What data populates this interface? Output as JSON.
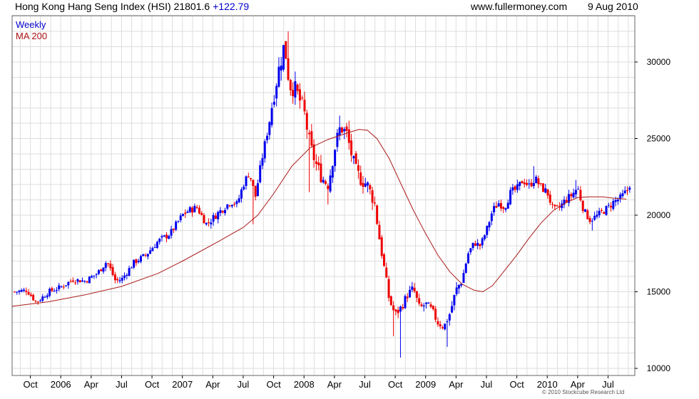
{
  "header": {
    "title": "Hong Kong Hang Seng Index (HSI) 21801.6",
    "change": "+122.79",
    "site": "www.fullermoney.com",
    "date": "9 Aug 2010"
  },
  "footer": {
    "copyright": "© 2010 Stockcube Research Ltd"
  },
  "colors": {
    "up": "#0000ee",
    "down": "#ee0000",
    "ma": "#aa1a1a",
    "grid": "#dddddd"
  },
  "chart_data": {
    "type": "candlestick",
    "ylim": [
      10000,
      33000
    ],
    "y_ticks": [
      "10000",
      "15000",
      "20000",
      "25000",
      "30000"
    ],
    "legend": [
      "Weekly",
      "MA 200"
    ],
    "legend_position": "top-left",
    "grid": true,
    "x_ticks": [
      {
        "label": "Oct",
        "t": 2005.75
      },
      {
        "label": "2006",
        "t": 2006.0
      },
      {
        "label": "Apr",
        "t": 2006.25
      },
      {
        "label": "Jul",
        "t": 2006.5
      },
      {
        "label": "Oct",
        "t": 2006.75
      },
      {
        "label": "2007",
        "t": 2007.0
      },
      {
        "label": "Apr",
        "t": 2007.25
      },
      {
        "label": "Jul",
        "t": 2007.5
      },
      {
        "label": "Oct",
        "t": 2007.75
      },
      {
        "label": "2008",
        "t": 2008.0
      },
      {
        "label": "Apr",
        "t": 2008.25
      },
      {
        "label": "Jul",
        "t": 2008.5
      },
      {
        "label": "Oct",
        "t": 2008.75
      },
      {
        "label": "2009",
        "t": 2009.0
      },
      {
        "label": "Apr",
        "t": 2009.25
      },
      {
        "label": "Jul",
        "t": 2009.5
      },
      {
        "label": "Oct",
        "t": 2009.75
      },
      {
        "label": "2010",
        "t": 2010.0
      },
      {
        "label": "Apr",
        "t": 2010.25
      },
      {
        "label": "Jul",
        "t": 2010.5
      }
    ],
    "xlim": [
      2005.6,
      2010.72
    ],
    "close_path": [
      [
        2005.62,
        15000
      ],
      [
        2005.72,
        15100
      ],
      [
        2005.8,
        14300
      ],
      [
        2005.9,
        15000
      ],
      [
        2006.0,
        15300
      ],
      [
        2006.1,
        15800
      ],
      [
        2006.2,
        15700
      ],
      [
        2006.3,
        16200
      ],
      [
        2006.38,
        17000
      ],
      [
        2006.45,
        15700
      ],
      [
        2006.5,
        15800
      ],
      [
        2006.6,
        16900
      ],
      [
        2006.7,
        17400
      ],
      [
        2006.8,
        18300
      ],
      [
        2006.9,
        18800
      ],
      [
        2007.0,
        20000
      ],
      [
        2007.05,
        20300
      ],
      [
        2007.12,
        20500
      ],
      [
        2007.2,
        19400
      ],
      [
        2007.3,
        20200
      ],
      [
        2007.4,
        20900
      ],
      [
        2007.45,
        20700
      ],
      [
        2007.5,
        22000
      ],
      [
        2007.55,
        22800
      ],
      [
        2007.6,
        21200
      ],
      [
        2007.65,
        23500
      ],
      [
        2007.7,
        25500
      ],
      [
        2007.75,
        27800
      ],
      [
        2007.8,
        29800
      ],
      [
        2007.84,
        31200
      ],
      [
        2007.88,
        28500
      ],
      [
        2007.93,
        28200
      ],
      [
        2008.0,
        26800
      ],
      [
        2008.05,
        24500
      ],
      [
        2008.1,
        23300
      ],
      [
        2008.15,
        22400
      ],
      [
        2008.2,
        22000
      ],
      [
        2008.25,
        24300
      ],
      [
        2008.3,
        25800
      ],
      [
        2008.35,
        25300
      ],
      [
        2008.42,
        23000
      ],
      [
        2008.47,
        22300
      ],
      [
        2008.52,
        22000
      ],
      [
        2008.58,
        20800
      ],
      [
        2008.62,
        18500
      ],
      [
        2008.66,
        16500
      ],
      [
        2008.7,
        14500
      ],
      [
        2008.75,
        13500
      ],
      [
        2008.8,
        14000
      ],
      [
        2008.85,
        14800
      ],
      [
        2008.9,
        15200
      ],
      [
        2008.95,
        13900
      ],
      [
        2009.0,
        14200
      ],
      [
        2009.05,
        13800
      ],
      [
        2009.1,
        13000
      ],
      [
        2009.15,
        12700
      ],
      [
        2009.2,
        13600
      ],
      [
        2009.25,
        15100
      ],
      [
        2009.3,
        15800
      ],
      [
        2009.35,
        17500
      ],
      [
        2009.4,
        18200
      ],
      [
        2009.45,
        18000
      ],
      [
        2009.5,
        19000
      ],
      [
        2009.55,
        20300
      ],
      [
        2009.6,
        20800
      ],
      [
        2009.65,
        20500
      ],
      [
        2009.7,
        21500
      ],
      [
        2009.75,
        21700
      ],
      [
        2009.8,
        22300
      ],
      [
        2009.85,
        21900
      ],
      [
        2009.9,
        22400
      ],
      [
        2009.95,
        21800
      ],
      [
        2010.0,
        21500
      ],
      [
        2010.05,
        20300
      ],
      [
        2010.1,
        20500
      ],
      [
        2010.15,
        21000
      ],
      [
        2010.2,
        21300
      ],
      [
        2010.25,
        21800
      ],
      [
        2010.3,
        20300
      ],
      [
        2010.35,
        19700
      ],
      [
        2010.4,
        19900
      ],
      [
        2010.45,
        20200
      ],
      [
        2010.5,
        20500
      ],
      [
        2010.55,
        20900
      ],
      [
        2010.6,
        21100
      ],
      [
        2010.65,
        21550
      ],
      [
        2010.68,
        21801.6
      ]
    ],
    "ma_path": [
      [
        2005.6,
        14050
      ],
      [
        2005.9,
        14350
      ],
      [
        2006.2,
        14800
      ],
      [
        2006.5,
        15350
      ],
      [
        2006.8,
        16200
      ],
      [
        2007.0,
        17000
      ],
      [
        2007.3,
        18300
      ],
      [
        2007.5,
        19200
      ],
      [
        2007.62,
        20000
      ],
      [
        2007.75,
        21400
      ],
      [
        2007.9,
        23200
      ],
      [
        2008.05,
        24400
      ],
      [
        2008.2,
        24950
      ],
      [
        2008.35,
        25350
      ],
      [
        2008.45,
        25600
      ],
      [
        2008.52,
        25550
      ],
      [
        2008.6,
        25000
      ],
      [
        2008.7,
        23700
      ],
      [
        2008.8,
        22000
      ],
      [
        2008.9,
        20300
      ],
      [
        2009.0,
        18800
      ],
      [
        2009.1,
        17400
      ],
      [
        2009.2,
        16300
      ],
      [
        2009.3,
        15500
      ],
      [
        2009.4,
        15100
      ],
      [
        2009.47,
        15000
      ],
      [
        2009.55,
        15400
      ],
      [
        2009.65,
        16400
      ],
      [
        2009.75,
        17400
      ],
      [
        2009.85,
        18500
      ],
      [
        2009.95,
        19500
      ],
      [
        2010.05,
        20300
      ],
      [
        2010.15,
        20800
      ],
      [
        2010.25,
        21150
      ],
      [
        2010.35,
        21200
      ],
      [
        2010.45,
        21200
      ],
      [
        2010.55,
        21100
      ],
      [
        2010.65,
        21050
      ]
    ],
    "low_spikes": [
      [
        2007.59,
        19400
      ],
      [
        2008.05,
        21500
      ],
      [
        2008.19,
        20700
      ],
      [
        2008.74,
        12100
      ],
      [
        2008.79,
        10700
      ],
      [
        2009.17,
        11400
      ],
      [
        2010.37,
        19000
      ]
    ],
    "high_spikes": [
      [
        2007.87,
        32000
      ],
      [
        2008.29,
        26500
      ],
      [
        2009.89,
        23200
      ],
      [
        2010.23,
        22300
      ]
    ]
  }
}
